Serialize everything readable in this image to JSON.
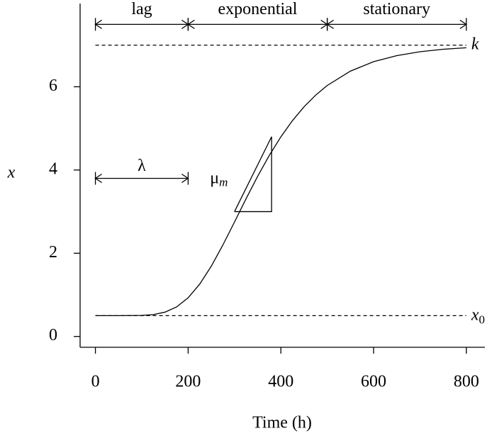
{
  "chart_data": {
    "type": "line",
    "x_label": "Time (h)",
    "y_label": "x",
    "x": [
      0,
      50,
      100,
      125,
      150,
      175,
      200,
      225,
      250,
      275,
      300,
      325,
      350,
      375,
      400,
      425,
      450,
      475,
      500,
      550,
      600,
      650,
      700,
      750,
      800
    ],
    "series": [
      {
        "color": "#000000",
        "values": [
          0.5,
          0.5,
          0.506,
          0.526,
          0.584,
          0.709,
          0.929,
          1.259,
          1.69,
          2.199,
          2.75,
          3.311,
          3.85,
          4.35,
          4.797,
          5.187,
          5.519,
          5.798,
          6.031,
          6.376,
          6.603,
          6.749,
          6.842,
          6.901,
          6.938
        ]
      }
    ],
    "xlim": [
      -33,
      840
    ],
    "ylim": [
      -0.26,
      8
    ],
    "xticks": [
      0,
      200,
      400,
      600,
      800
    ],
    "yticks": [
      0,
      2,
      4,
      6
    ],
    "hlines": [
      {
        "value": 7,
        "label": "k"
      },
      {
        "value": 0.5,
        "label": "x",
        "subscript": "0"
      }
    ],
    "phase_y": 7.5,
    "phases": [
      {
        "label": "lag",
        "start": 0,
        "end": 200
      },
      {
        "label": "exponential",
        "start": 200,
        "end": 500
      },
      {
        "label": "stationary",
        "start": 500,
        "end": 800
      }
    ],
    "lambda": {
      "label": "λ",
      "start": 0,
      "end": 200,
      "y": 3.8
    },
    "slope": {
      "label": "μ",
      "subscript": "m",
      "x": [
        300,
        380,
        380,
        300
      ],
      "y": [
        3,
        3,
        4.8,
        3
      ]
    }
  }
}
